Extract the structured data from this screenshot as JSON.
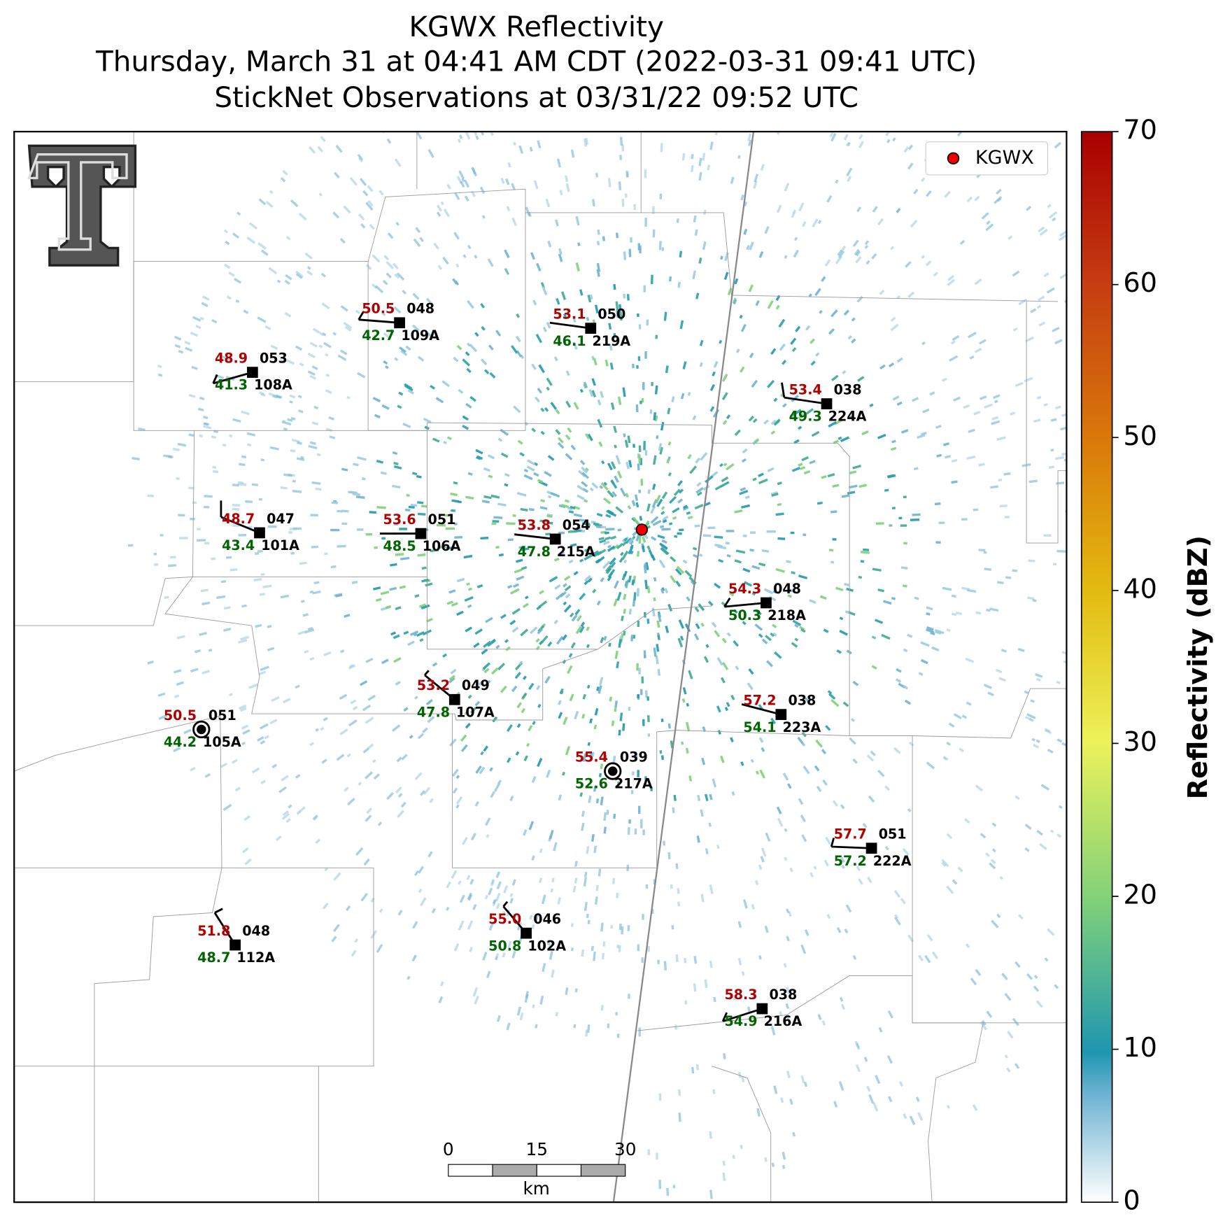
{
  "title": [
    "KGWX Reflectivity",
    "Thursday, March 31 at 04:41 AM CDT (2022-03-31 09:41 UTC)",
    "StickNet Observations at 03/31/22 09:52 UTC"
  ],
  "legend": "KGWX",
  "stations": [
    {
      "id": "109A",
      "temp": "50.5",
      "dewpoint": "42.7",
      "pressure": "048"
    },
    {
      "id": "219A",
      "temp": "53.1",
      "dewpoint": "46.1",
      "pressure": "050"
    },
    {
      "id": "108A",
      "temp": "48.9",
      "dewpoint": "41.3",
      "pressure": "053"
    },
    {
      "id": "224A",
      "temp": "53.4",
      "dewpoint": "49.3",
      "pressure": "038"
    },
    {
      "id": "101A",
      "temp": "48.7",
      "dewpoint": "43.4",
      "pressure": "047"
    },
    {
      "id": "106A",
      "temp": "53.6",
      "dewpoint": "48.5",
      "pressure": "051"
    },
    {
      "id": "215A",
      "temp": "53.8",
      "dewpoint": "47.8",
      "pressure": "054"
    },
    {
      "id": "218A",
      "temp": "54.3",
      "dewpoint": "50.3",
      "pressure": "048"
    },
    {
      "id": "107A",
      "temp": "53.2",
      "dewpoint": "47.8",
      "pressure": "049"
    },
    {
      "id": "105A",
      "temp": "50.5",
      "dewpoint": "44.2",
      "pressure": "051"
    },
    {
      "id": "223A",
      "temp": "57.2",
      "dewpoint": "54.1",
      "pressure": "038"
    },
    {
      "id": "217A",
      "temp": "55.4",
      "dewpoint": "52.6",
      "pressure": "039"
    },
    {
      "id": "222A",
      "temp": "57.7",
      "dewpoint": "57.2",
      "pressure": "051"
    },
    {
      "id": "112A",
      "temp": "51.8",
      "dewpoint": "48.7",
      "pressure": "048"
    },
    {
      "id": "102A",
      "temp": "55.0",
      "dewpoint": "50.8",
      "pressure": "046"
    },
    {
      "id": "216A",
      "temp": "58.3",
      "dewpoint": "54.9",
      "pressure": "038"
    }
  ],
  "colorbar": {
    "label": "Reflectivity (dBZ)",
    "lim": [
      0,
      70
    ],
    "ticks": [
      0,
      10,
      20,
      30,
      40,
      50,
      60,
      70
    ]
  },
  "scale_bar": {
    "ticks": [
      0,
      15,
      30
    ],
    "unit": "km"
  }
}
